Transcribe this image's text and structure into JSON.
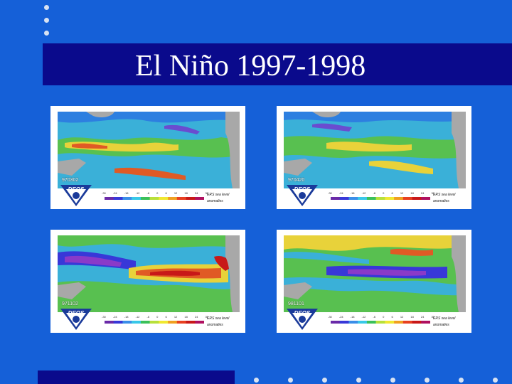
{
  "slide": {
    "title": "El Niño 1997-1998",
    "background_color": "#1560d8",
    "band_color": "#0a0a8c"
  },
  "maps": [
    {
      "date": "970302",
      "logo": "DEOS",
      "caption_line1": "ERS sea level",
      "caption_line2": "anomalies"
    },
    {
      "date": "970420",
      "logo": "DEOS",
      "caption_line1": "ERS sea level",
      "caption_line2": "anomalies"
    },
    {
      "date": "971102",
      "logo": "DEOS",
      "caption_line1": "ERS sea level",
      "caption_line2": "anomalies"
    },
    {
      "date": "981101",
      "logo": "DEOS",
      "caption_line1": "ERS sea level",
      "caption_line2": "anomalies"
    }
  ],
  "scale_ticks": [
    "-30",
    "-24",
    "-18",
    "-12",
    "-6",
    "0",
    "6",
    "12",
    "18",
    "24",
    "30"
  ],
  "scale_colors": [
    "#6a2aa8",
    "#3838d8",
    "#3a8ee8",
    "#38c8e8",
    "#3ac05a",
    "#b8e03a",
    "#f0e830",
    "#f0a020",
    "#e84020",
    "#c81818",
    "#b01060"
  ]
}
